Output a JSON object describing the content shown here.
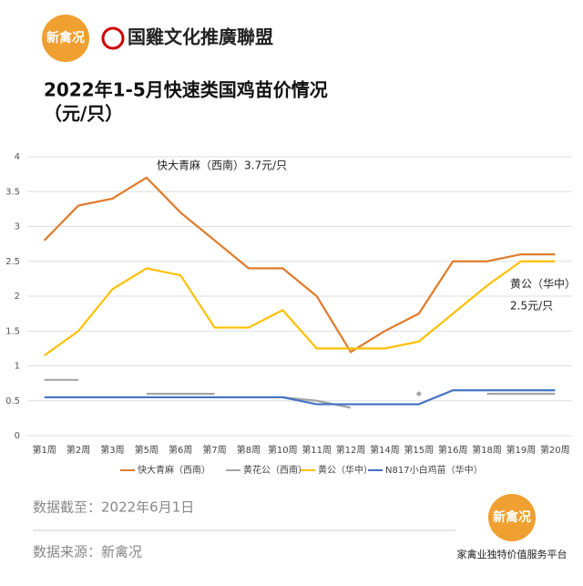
{
  "header": {
    "logo": "新禽况",
    "alliance": "国雞文化推廣聯盟"
  },
  "chart_data": {
    "type": "line",
    "title": "2022年1-5月快速类国鸡苗价情况",
    "subtitle": "（元/只）",
    "categories": [
      "第1周",
      "第2周",
      "第3周",
      "第5周",
      "第6周",
      "第7周",
      "第8周",
      "第10周",
      "第11周",
      "第12周",
      "第14周",
      "第15周",
      "第16周",
      "第18周",
      "第19周",
      "第20周"
    ],
    "series": [
      {
        "name": "快大青麻（西南）",
        "color": "#e07b2c",
        "values": [
          2.8,
          3.3,
          3.4,
          3.7,
          3.2,
          2.8,
          2.4,
          2.4,
          2.0,
          1.2,
          1.5,
          1.75,
          2.5,
          2.5,
          2.6,
          2.6
        ]
      },
      {
        "name": "黄花公（西南）",
        "color": "#a5a5a5",
        "values": [
          0.8,
          0.8,
          null,
          0.6,
          0.6,
          0.6,
          null,
          0.55,
          0.5,
          0.4,
          null,
          0.6,
          null,
          0.6,
          0.6,
          0.6
        ]
      },
      {
        "name": "黄公（华中）",
        "color": "#ffc000",
        "values": [
          1.15,
          1.5,
          2.1,
          2.4,
          2.3,
          1.55,
          1.55,
          1.8,
          1.25,
          1.25,
          1.25,
          1.35,
          1.75,
          2.15,
          2.5,
          2.5
        ]
      },
      {
        "name": "N817小白鸡苗（华中）",
        "color": "#4472c4",
        "values": [
          0.55,
          0.55,
          0.55,
          0.55,
          0.55,
          0.55,
          0.55,
          0.55,
          0.45,
          0.45,
          0.45,
          0.45,
          0.65,
          0.65,
          0.65,
          0.65
        ]
      }
    ],
    "ylim": [
      0,
      4
    ],
    "yticks": [
      0,
      0.5,
      1,
      1.5,
      2,
      2.5,
      3,
      3.5,
      4
    ],
    "grid": true,
    "annotations": [
      "快大青麻（西南）3.7元/只",
      "黄公（华中）",
      "2.5元/只"
    ]
  },
  "footer": {
    "cutoff": "数据截至：2022年6月1日",
    "source": "数据来源：新禽况",
    "logo": "新禽况",
    "slogan": "家禽业独特价值服务平台"
  }
}
